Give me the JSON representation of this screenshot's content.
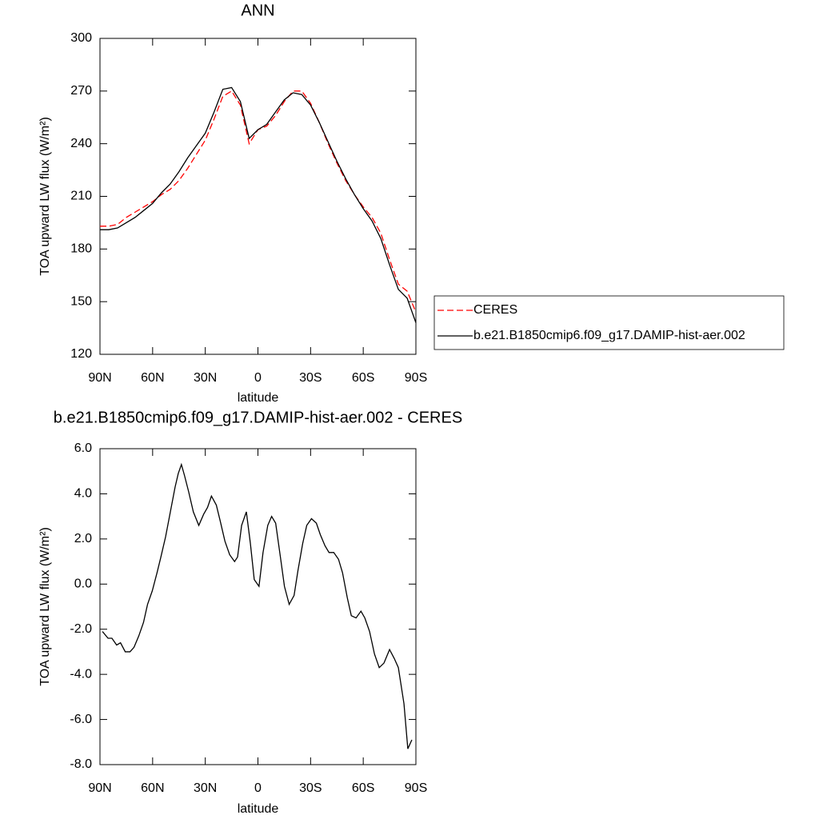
{
  "chart_data": [
    {
      "type": "line",
      "title": "ANN",
      "xlabel": "latitude",
      "ylabel": "TOA upward LW flux (W/m²)",
      "x": [
        90,
        85,
        80,
        75,
        70,
        65,
        60,
        55,
        50,
        45,
        40,
        35,
        30,
        25,
        20,
        15,
        10,
        5,
        0,
        -5,
        -10,
        -15,
        -20,
        -25,
        -30,
        -35,
        -40,
        -45,
        -50,
        -55,
        -60,
        -65,
        -70,
        -75,
        -80,
        -85,
        -90
      ],
      "series": [
        {
          "name": "CERES",
          "color": "#ff0000",
          "linestyle": "dashed",
          "values": [
            193,
            193,
            194,
            198,
            201,
            204,
            207,
            211,
            214,
            219,
            226,
            234,
            242,
            254,
            267,
            270,
            262,
            240,
            248,
            250,
            256,
            264,
            270,
            270,
            263,
            252,
            240,
            229,
            219,
            211,
            204,
            198,
            189,
            174,
            160,
            156,
            144
          ]
        },
        {
          "name": "b.e21.B1850cmip6.f09_g17.DAMIP-hist-aer.002",
          "color": "#000000",
          "linestyle": "solid",
          "values": [
            191,
            191,
            192,
            195,
            198,
            202,
            206,
            212,
            217,
            224,
            232,
            239,
            246,
            258,
            271,
            272,
            264,
            243,
            248,
            251,
            258,
            265,
            269,
            268,
            262,
            252,
            241,
            230,
            220,
            211,
            203,
            196,
            186,
            171,
            157,
            152,
            138
          ]
        }
      ],
      "xlim": [
        90,
        -90
      ],
      "xticks": [
        {
          "value": 90,
          "label": "90N"
        },
        {
          "value": 60,
          "label": "60N"
        },
        {
          "value": 30,
          "label": "30N"
        },
        0,
        {
          "value": -30,
          "label": "30S"
        },
        {
          "value": -60,
          "label": "60S"
        },
        {
          "value": -90,
          "label": "90S"
        }
      ],
      "ylim": [
        120,
        300
      ],
      "yticks": [
        120,
        150,
        180,
        210,
        240,
        270,
        300
      ],
      "legend": "right"
    },
    {
      "type": "line",
      "title": "b.e21.B1850cmip6.f09_g17.DAMIP-hist-aer.002 - CERES",
      "xlabel": "latitude",
      "ylabel": "TOA upward LW flux (W/m²)",
      "x": [
        88.6,
        85.4,
        83.2,
        80.5,
        78.3,
        75.6,
        72.9,
        70.6,
        67.9,
        65.2,
        62.9,
        60.2,
        57.5,
        55.3,
        52.6,
        49.9,
        47.2,
        45.4,
        43.6,
        41.8,
        39.5,
        36.8,
        33.7,
        30.9,
        28.7,
        26.5,
        23.7,
        21.5,
        18.8,
        16.1,
        13.3,
        11.6,
        9.3,
        6.6,
        4.3,
        2.1,
        -0.6,
        -2.9,
        -5.6,
        -7.8,
        -10.1,
        -12.8,
        -15.1,
        -17.8,
        -20.6,
        -22.8,
        -25.5,
        -27.8,
        -30.5,
        -33.3,
        -35.5,
        -38.2,
        -40.5,
        -43.2,
        -45.9,
        -48.2,
        -50.9,
        -53.2,
        -55.9,
        -58.7,
        -60.9,
        -63.6,
        -66.4,
        -69.1,
        -71.8,
        -75.0,
        -77.7,
        -80.0,
        -83.2,
        -85.4,
        -87.7
      ],
      "series": [
        {
          "color": "#000000",
          "linestyle": "solid",
          "values": [
            -2.1,
            -2.4,
            -2.4,
            -2.7,
            -2.6,
            -3.0,
            -3.0,
            -2.8,
            -2.3,
            -1.7,
            -0.9,
            -0.3,
            0.5,
            1.2,
            2.1,
            3.2,
            4.3,
            4.9,
            5.3,
            4.8,
            4.1,
            3.2,
            2.6,
            3.1,
            3.4,
            3.9,
            3.5,
            2.8,
            1.9,
            1.3,
            1.0,
            1.2,
            2.6,
            3.2,
            1.8,
            0.2,
            -0.1,
            1.4,
            2.6,
            3.0,
            2.7,
            1.2,
            -0.1,
            -0.9,
            -0.5,
            0.6,
            1.8,
            2.6,
            2.9,
            2.7,
            2.2,
            1.7,
            1.4,
            1.4,
            1.1,
            0.5,
            -0.6,
            -1.4,
            -1.5,
            -1.2,
            -1.5,
            -2.1,
            -3.1,
            -3.7,
            -3.5,
            -2.9,
            -3.3,
            -3.7,
            -5.3,
            -7.3,
            -6.9
          ]
        }
      ],
      "xlim": [
        90,
        -90
      ],
      "xticks": [
        {
          "value": 90,
          "label": "90N"
        },
        {
          "value": 60,
          "label": "60N"
        },
        {
          "value": 30,
          "label": "30N"
        },
        0,
        {
          "value": -30,
          "label": "30S"
        },
        {
          "value": -60,
          "label": "60S"
        },
        {
          "value": -90,
          "label": "90S"
        }
      ],
      "ylim": [
        -8,
        6
      ],
      "yticks": [
        {
          "value": -8,
          "label": "-8.0"
        },
        {
          "value": -6,
          "label": "-6.0"
        },
        {
          "value": -4,
          "label": "-4.0"
        },
        {
          "value": -2,
          "label": "-2.0"
        },
        {
          "value": 0,
          "label": "0.0"
        },
        {
          "value": 2,
          "label": "2.0"
        },
        {
          "value": 4,
          "label": "4.0"
        },
        {
          "value": 6,
          "label": "6.0"
        }
      ]
    }
  ]
}
